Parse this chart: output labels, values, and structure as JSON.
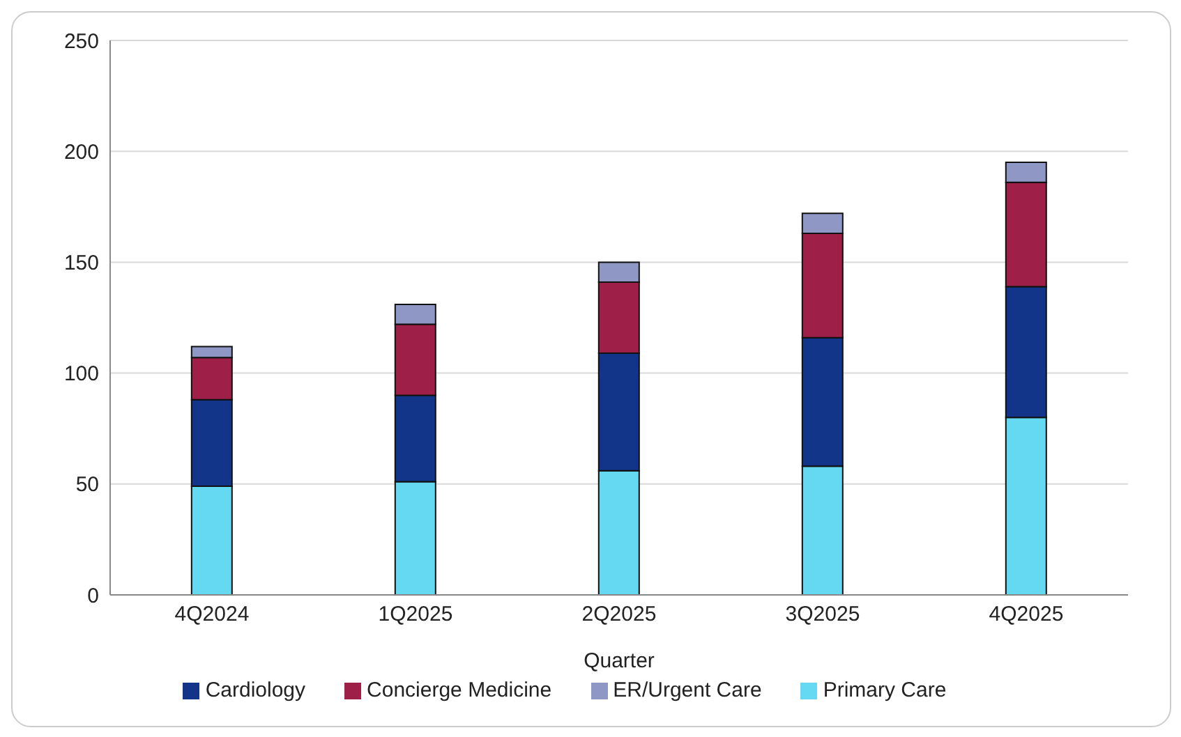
{
  "chart_data": {
    "type": "bar",
    "stacked": true,
    "xlabel": "Quarter",
    "categories": [
      "4Q2024",
      "1Q2025",
      "2Q2025",
      "3Q2025",
      "4Q2025"
    ],
    "series": [
      {
        "name": "Primary Care",
        "color": "#66d9f2",
        "values": [
          49,
          51,
          56,
          58,
          80
        ]
      },
      {
        "name": "Cardiology",
        "color": "#12358a",
        "values": [
          39,
          39,
          53,
          58,
          59
        ]
      },
      {
        "name": "Concierge Medicine",
        "color": "#9e1f48",
        "values": [
          19,
          32,
          32,
          47,
          47
        ]
      },
      {
        "name": "ER/Urgent Care",
        "color": "#8f97c4",
        "values": [
          5,
          9,
          9,
          9,
          9
        ]
      }
    ],
    "ylim": [
      0,
      250
    ],
    "yticks": [
      0,
      50,
      100,
      150,
      200,
      250
    ],
    "grid": "y",
    "legend": "bottom"
  }
}
